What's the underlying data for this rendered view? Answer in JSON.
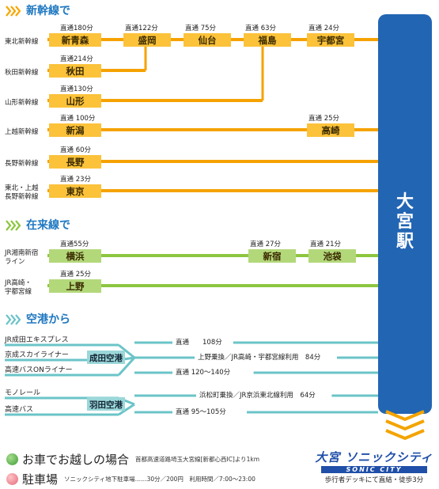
{
  "hub": {
    "label": "大宮駅"
  },
  "sections": {
    "shinkansen": {
      "title": "新幹線で"
    },
    "zairai": {
      "title": "在来線で"
    },
    "airport": {
      "title": "空港から"
    }
  },
  "shinkansen_rows": [
    {
      "line": [
        "東北新幹線"
      ],
      "origin": "新青森",
      "time": "直通180分",
      "stops": [
        {
          "name": "盛岡",
          "time": "直通122分"
        },
        {
          "name": "仙台",
          "time": "直通 75分"
        },
        {
          "name": "福島",
          "time": "直通 63分"
        },
        {
          "name": "宇都宮",
          "time": "直通 24分"
        }
      ]
    },
    {
      "line": [
        "秋田新幹線"
      ],
      "origin": "秋田",
      "time": "直通214分",
      "stops": []
    },
    {
      "line": [
        "山形新幹線"
      ],
      "origin": "山形",
      "time": "直通130分",
      "stops": []
    },
    {
      "line": [
        "上越新幹線"
      ],
      "origin": "新潟",
      "time": "直通 100分",
      "stops": [
        {
          "name": "高崎",
          "time": "直通 25分"
        }
      ]
    },
    {
      "line": [
        "長野新幹線"
      ],
      "origin": "長野",
      "time": "直通 60分",
      "stops": []
    },
    {
      "line": [
        "東北・上越",
        "長野新幹線"
      ],
      "origin": "東京",
      "time": "直通 23分",
      "stops": []
    }
  ],
  "zairai_rows": [
    {
      "line": [
        "JR湘南新宿",
        "ライン"
      ],
      "origin": "横浜",
      "time": "直通55分",
      "stops": [
        {
          "name": "新宿",
          "time": "直通 27分"
        },
        {
          "name": "池袋",
          "time": "直通 21分"
        }
      ]
    },
    {
      "line": [
        "JR高崎・",
        "宇都宮線"
      ],
      "origin": "上野",
      "time": "直通 25分",
      "stops": []
    }
  ],
  "airport_groups": [
    {
      "airport": "成田空港",
      "routes": [
        {
          "line": "JR成田エキスプレス",
          "info": "直通　　108分"
        },
        {
          "line": "京成スカイライナー",
          "info": "上野乗換／JR高崎・宇都宮線利用　84分"
        },
        {
          "line": "高速バスONライナー",
          "info": "直通 120～140分"
        }
      ]
    },
    {
      "airport": "羽田空港",
      "routes": [
        {
          "line": "モノレール",
          "info": "浜松町乗換／JR京浜東北線利用　64分"
        },
        {
          "line": "高速バス",
          "info": "直通 95～105分"
        }
      ]
    }
  ],
  "footer": {
    "car": {
      "title": "お車でお越しの場合",
      "detail": "首都高速道路埼玉大宮線[新都心西IC]より1km"
    },
    "parking": {
      "title": "駐車場",
      "detail": "ソニックシティ地下駐車場……30分／200円　利用時間／7:00～23:00"
    }
  },
  "brand": {
    "logo": "大宮 ソニックシティ",
    "logo_en": "SONIC CITY",
    "tagline": "歩行者デッキにて直結・徒歩3分"
  },
  "colors": {
    "shinkansen": "#f5a200",
    "shinkansen_light": "#fbc23a",
    "zairai": "#8cc63f",
    "zairai_light": "#b3d87a",
    "airport": "#6bc4c8",
    "airport_light": "#9bd7d9",
    "hub": "#2265b3",
    "heading": "#1f78c1",
    "car": "#62b34a",
    "parking": "#ef8c96"
  },
  "icons": {
    "section_marker": "triple-chevron-icon",
    "arrival": "down-chevron-icon",
    "legend": "circle-icon"
  }
}
